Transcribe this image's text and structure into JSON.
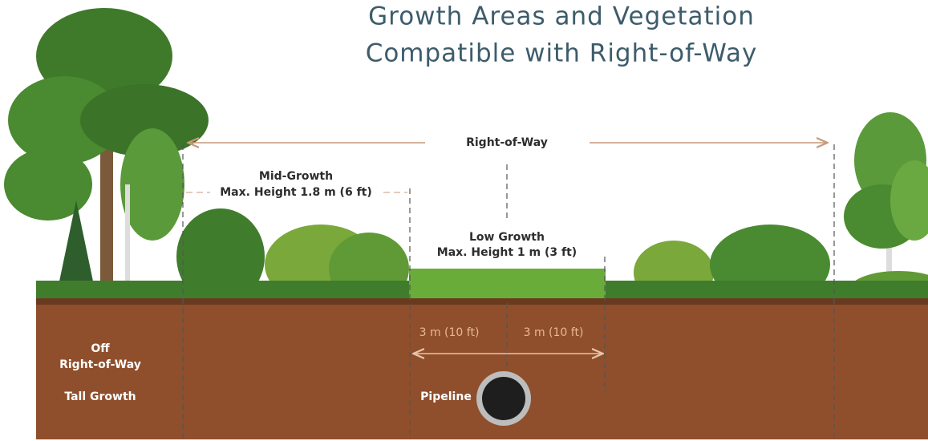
{
  "title": {
    "lines": [
      "Growth Areas and Vegetation",
      "Compatible with Right-of-Way"
    ]
  },
  "labels": {
    "right_of_way": "Right-of-Way",
    "mid_growth": {
      "name": "Mid-Growth",
      "height": "Max. Height 1.8 m (6 ft)"
    },
    "low_growth": {
      "name": "Low Growth",
      "height": "Max. Height 1 m (3 ft)"
    },
    "offsets": [
      "3 m (10 ft)",
      "3 m (10 ft)"
    ],
    "off_row": {
      "lines": [
        "Off",
        "Right-of-Way"
      ],
      "growth": "Tall Growth"
    },
    "pipeline": "Pipeline"
  }
}
